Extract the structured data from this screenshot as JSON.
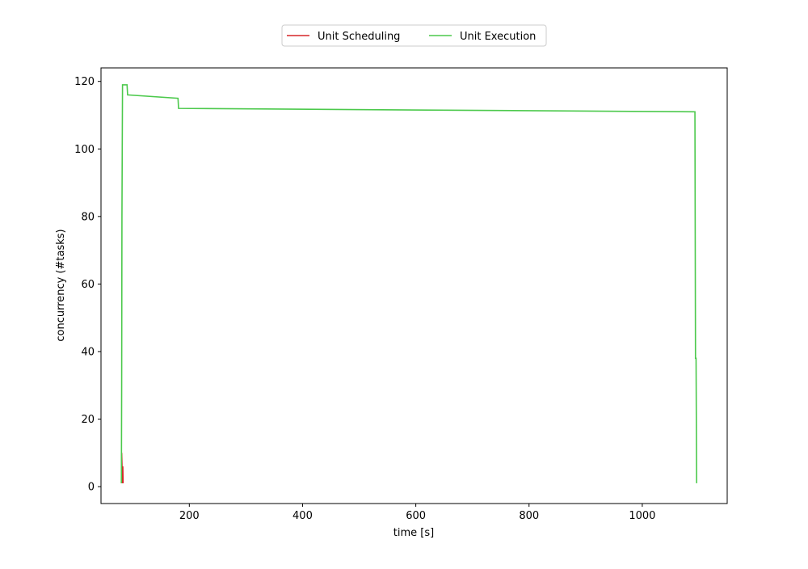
{
  "chart_data": {
    "type": "line",
    "title": "",
    "xlabel": "time [s]",
    "ylabel": "concurrency (#tasks)",
    "xlim": [
      44,
      1150
    ],
    "ylim": [
      -5,
      124
    ],
    "xticks": [
      200,
      400,
      600,
      800,
      1000
    ],
    "yticks": [
      0,
      20,
      40,
      60,
      80,
      100,
      120
    ],
    "grid": false,
    "legend": {
      "placement": "top-center, outside plot",
      "ncol": 2
    },
    "series": [
      {
        "name": "Unit Scheduling",
        "color": "#d62728",
        "points": [
          [
            80,
            1
          ],
          [
            80.5,
            10
          ],
          [
            81,
            7
          ],
          [
            81.5,
            3
          ],
          [
            82,
            1
          ],
          [
            82.5,
            6
          ],
          [
            83,
            1
          ]
        ]
      },
      {
        "name": "Unit Execution",
        "color": "#4cc94c",
        "points": [
          [
            80,
            1
          ],
          [
            80.5,
            30
          ],
          [
            81,
            80
          ],
          [
            82,
            119
          ],
          [
            90,
            119
          ],
          [
            91,
            116
          ],
          [
            180,
            115
          ],
          [
            181,
            112
          ],
          [
            1093,
            111
          ],
          [
            1094,
            38
          ],
          [
            1095,
            38
          ],
          [
            1096,
            1
          ]
        ]
      }
    ]
  }
}
